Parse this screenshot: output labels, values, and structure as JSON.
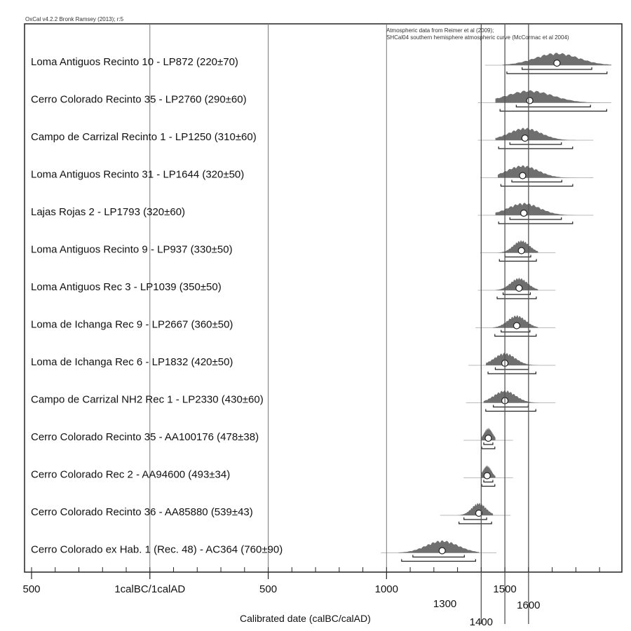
{
  "chart_data": {
    "type": "calibration-plot",
    "header": "OxCal v4.2.2 Bronk Ramsey (2013); r:5",
    "annotations": [
      "Atmospheric data from Reimer et al (2009);",
      "SHCal04 southern hemisphere atmospheric curve (McCormac et al 2004)"
    ],
    "xlabel": "Calibrated date (calBC/calAD)",
    "x_tick_labels": [
      "500",
      "1calBC/1calAD",
      "500",
      "1000",
      "1300",
      "1400",
      "1500",
      "1600"
    ],
    "xlim": [
      -500,
      1950
    ],
    "reference_lines": [
      1400,
      1500,
      1600
    ],
    "samples": [
      {
        "label": "Loma Antiguos Recinto 10 - LP872 (220±70)",
        "median": 1720,
        "range": [
          1490,
          1950
        ]
      },
      {
        "label": "Cerro Colorado Recinto 35 - LP2760 (290±60)",
        "median": 1605,
        "range": [
          1460,
          1950
        ]
      },
      {
        "label": "Campo de Carrizal Recinto 1 - LP1250 (310±60)",
        "median": 1585,
        "range": [
          1460,
          1800
        ]
      },
      {
        "label": "Loma Antiguos Recinto 31 - LP1644 (320±50)",
        "median": 1575,
        "range": [
          1470,
          1800
        ]
      },
      {
        "label": "Lajas Rojas 2 - LP1793 (320±60)",
        "median": 1580,
        "range": [
          1460,
          1800
        ]
      },
      {
        "label": "Loma Antiguos Recinto 9 - LP937 (330±50)",
        "median": 1570,
        "range": [
          1470,
          1640
        ]
      },
      {
        "label": "Loma Antiguos Rec 3 - LP1039 (350±50)",
        "median": 1560,
        "range": [
          1460,
          1640
        ]
      },
      {
        "label": "Loma de Ichanga Rec 9 - LP2667 (360±50)",
        "median": 1550,
        "range": [
          1450,
          1640
        ]
      },
      {
        "label": "Loma de Ichanga Rec 6 - LP1832 (420±50)",
        "median": 1500,
        "range": [
          1420,
          1640
        ]
      },
      {
        "label": "Campo de Carrizal NH2 Rec 1 - LP2330 (430±60)",
        "median": 1500,
        "range": [
          1410,
          1640
        ]
      },
      {
        "label": "Cerro Colorado Recinto 35 - AA100176 (478±38)",
        "median": 1430,
        "range": [
          1400,
          1460
        ]
      },
      {
        "label": "Cerro Colorado Rec 2 - AA94600 (493±34)",
        "median": 1425,
        "range": [
          1400,
          1460
        ]
      },
      {
        "label": "Cerro Colorado Recinto 36 - AA85880 (539±43)",
        "median": 1390,
        "range": [
          1300,
          1450
        ]
      },
      {
        "label": "Cerro Colorado ex Hab. 1 (Rec. 48) - AC364 (760±90)",
        "median": 1235,
        "range": [
          1050,
          1390
        ]
      }
    ]
  }
}
